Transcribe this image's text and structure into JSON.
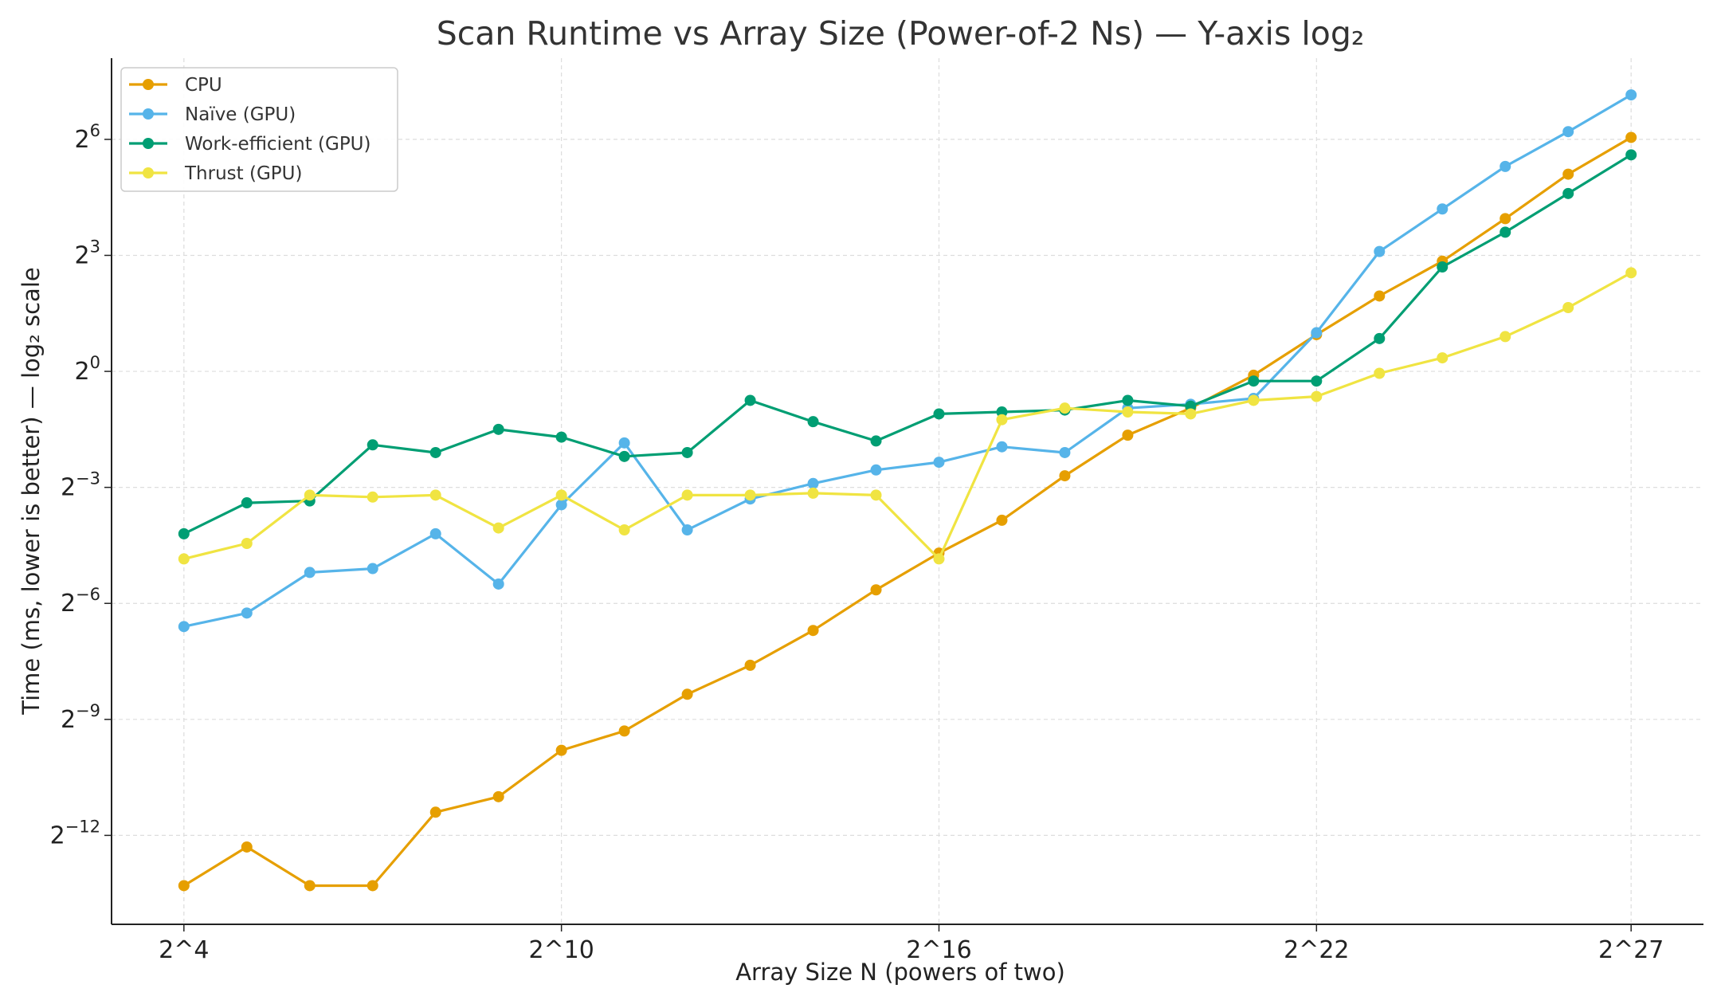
{
  "chart_data": {
    "type": "line",
    "title": "Scan Runtime vs Array Size (Power-of-2 Ns) — Y-axis log₂",
    "xlabel": "Array Size N (powers of two)",
    "ylabel": "Time (ms, lower is better) — log₂ scale",
    "yscale": "log2",
    "grid": true,
    "legend_position": "top-left",
    "x_exponents": [
      4,
      5,
      6,
      7,
      8,
      9,
      10,
      11,
      12,
      13,
      14,
      15,
      16,
      17,
      18,
      19,
      20,
      21,
      22,
      23,
      24,
      25,
      26,
      27
    ],
    "x_ticks": [
      {
        "exp": 4,
        "label": "2^4"
      },
      {
        "exp": 10,
        "label": "2^10"
      },
      {
        "exp": 16,
        "label": "2^16"
      },
      {
        "exp": 22,
        "label": "2^22"
      },
      {
        "exp": 27,
        "label": "2^27"
      }
    ],
    "y_ticks": [
      {
        "exp": -12,
        "base": "2",
        "sup": "−12"
      },
      {
        "exp": -9,
        "base": "2",
        "sup": "−9"
      },
      {
        "exp": -6,
        "base": "2",
        "sup": "−6"
      },
      {
        "exp": -3,
        "base": "2",
        "sup": "−3"
      },
      {
        "exp": 0,
        "base": "2",
        "sup": "0"
      },
      {
        "exp": 3,
        "base": "2",
        "sup": "3"
      },
      {
        "exp": 6,
        "base": "2",
        "sup": "6"
      }
    ],
    "y_range_log2": [
      -14.3,
      8.1
    ],
    "x_range_exp": [
      2.85,
      28.15
    ],
    "series": [
      {
        "name": "CPU",
        "color": "#E69F00",
        "log2_time": [
          -13.3,
          -12.3,
          -13.3,
          -13.3,
          -11.4,
          -11.0,
          -9.8,
          -9.3,
          -8.35,
          -7.6,
          -6.7,
          -5.65,
          -4.7,
          -3.85,
          -2.7,
          -1.65,
          -0.95,
          -0.1,
          0.95,
          1.95,
          2.85,
          3.95,
          5.1,
          6.05
        ]
      },
      {
        "name": "Naïve (GPU)",
        "color": "#56B4E9",
        "log2_time": [
          -6.6,
          -6.25,
          -5.2,
          -5.1,
          -4.2,
          -5.5,
          -3.45,
          -1.85,
          -4.1,
          -3.3,
          -2.9,
          -2.55,
          -2.35,
          -1.95,
          -2.1,
          -0.95,
          -0.85,
          -0.7,
          1.0,
          3.1,
          4.2,
          5.3,
          6.2,
          7.15
        ]
      },
      {
        "name": "Work-efficient (GPU)",
        "color": "#009E73",
        "log2_time": [
          -4.2,
          -3.4,
          -3.35,
          -1.9,
          -2.1,
          -1.5,
          -1.7,
          -2.2,
          -2.1,
          -0.75,
          -1.3,
          -1.8,
          -1.1,
          -1.05,
          -1.0,
          -0.75,
          -0.9,
          -0.25,
          -0.25,
          0.85,
          2.7,
          3.6,
          4.6,
          5.6
        ]
      },
      {
        "name": "Thrust (GPU)",
        "color": "#F0E442",
        "log2_time": [
          -4.85,
          -4.45,
          -3.2,
          -3.25,
          -3.2,
          -4.05,
          -3.2,
          -4.1,
          -3.2,
          -3.2,
          -3.15,
          -3.2,
          -4.85,
          -1.25,
          -0.95,
          -1.05,
          -1.1,
          -0.75,
          -0.65,
          -0.05,
          0.35,
          0.9,
          1.65,
          2.55
        ]
      }
    ]
  }
}
